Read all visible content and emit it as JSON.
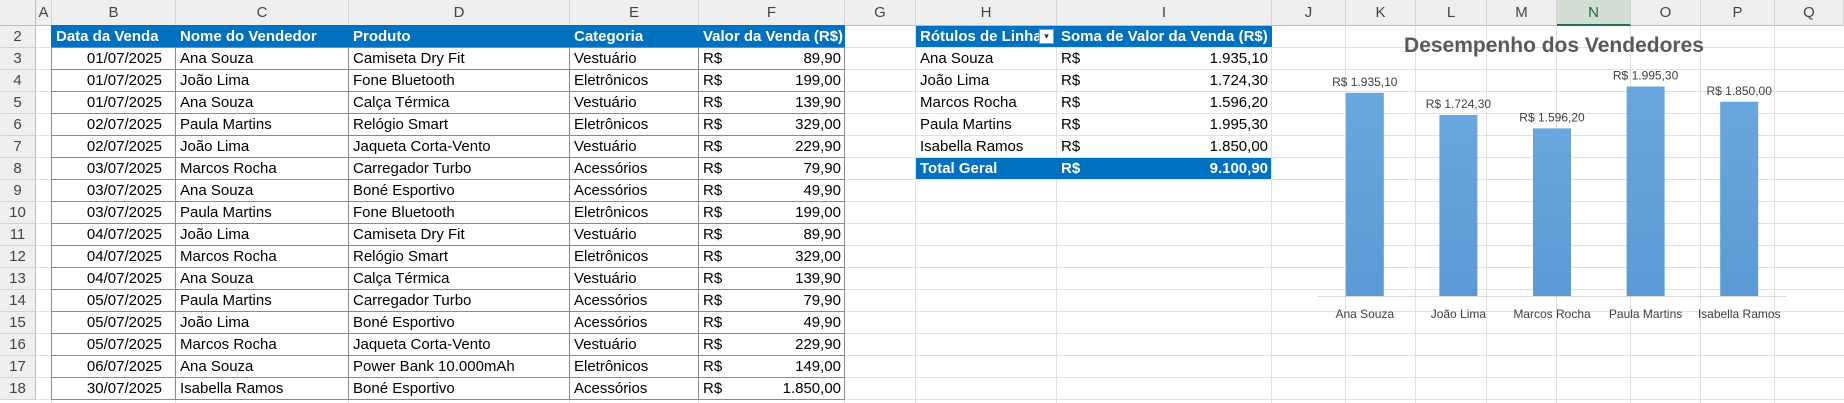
{
  "columns": [
    "A",
    "B",
    "C",
    "D",
    "E",
    "F",
    "G",
    "H",
    "I",
    "J",
    "K",
    "L",
    "M",
    "N",
    "O",
    "P",
    "Q"
  ],
  "active_column": "N",
  "rows": [
    2,
    3,
    4,
    5,
    6,
    7,
    8,
    9,
    10,
    11,
    12,
    13,
    14,
    15,
    16,
    17,
    18
  ],
  "sales_table": {
    "headers": [
      "Data da Venda",
      "Nome do Vendedor",
      "Produto",
      "Categoria",
      "Valor da Venda (R$)"
    ],
    "currency_symbol": "R$",
    "rows": [
      [
        "01/07/2025",
        "Ana Souza",
        "Camiseta Dry Fit",
        "Vestuário",
        "89,90"
      ],
      [
        "01/07/2025",
        "João Lima",
        "Fone Bluetooth",
        "Eletrônicos",
        "199,00"
      ],
      [
        "01/07/2025",
        "Ana Souza",
        "Calça Térmica",
        "Vestuário",
        "139,90"
      ],
      [
        "02/07/2025",
        "Paula Martins",
        "Relógio Smart",
        "Eletrônicos",
        "329,00"
      ],
      [
        "02/07/2025",
        "João Lima",
        "Jaqueta Corta-Vento",
        "Vestuário",
        "229,90"
      ],
      [
        "03/07/2025",
        "Marcos Rocha",
        "Carregador Turbo",
        "Acessórios",
        "79,90"
      ],
      [
        "03/07/2025",
        "Ana Souza",
        "Boné Esportivo",
        "Acessórios",
        "49,90"
      ],
      [
        "03/07/2025",
        "Paula Martins",
        "Fone Bluetooth",
        "Eletrônicos",
        "199,00"
      ],
      [
        "04/07/2025",
        "João Lima",
        "Camiseta Dry Fit",
        "Vestuário",
        "89,90"
      ],
      [
        "04/07/2025",
        "Marcos Rocha",
        "Relógio Smart",
        "Eletrônicos",
        "329,00"
      ],
      [
        "04/07/2025",
        "Ana Souza",
        "Calça Térmica",
        "Vestuário",
        "139,90"
      ],
      [
        "05/07/2025",
        "Paula Martins",
        "Carregador Turbo",
        "Acessórios",
        "79,90"
      ],
      [
        "05/07/2025",
        "João Lima",
        "Boné Esportivo",
        "Acessórios",
        "49,90"
      ],
      [
        "05/07/2025",
        "Marcos Rocha",
        "Jaqueta Corta-Vento",
        "Vestuário",
        "229,90"
      ],
      [
        "06/07/2025",
        "Ana Souza",
        "Power Bank 10.000mAh",
        "Eletrônicos",
        "149,00"
      ],
      [
        "30/07/2025",
        "Isabella Ramos",
        "Boné Esportivo",
        "Acessórios",
        "1.850,00"
      ]
    ]
  },
  "pivot": {
    "header_row_labels": "Rótulos de Linha",
    "header_sum": "Soma de Valor da Venda (R$)",
    "filter_icon": "filter-dropdown-icon",
    "currency_symbol": "R$",
    "rows": [
      {
        "label": "Ana Souza",
        "value": "1.935,10"
      },
      {
        "label": "João Lima",
        "value": "1.724,30"
      },
      {
        "label": "Marcos Rocha",
        "value": "1.596,20"
      },
      {
        "label": "Paula Martins",
        "value": "1.995,30"
      },
      {
        "label": "Isabella Ramos",
        "value": "1.850,00"
      }
    ],
    "total_label": "Total Geral",
    "total_value": "9.100,90"
  },
  "chart_data": {
    "type": "bar",
    "title": "Desempenho dos Vendedores",
    "categories": [
      "Ana Souza",
      "João Lima",
      "Marcos Rocha",
      "Paula Martins",
      "Isabella Ramos"
    ],
    "values": [
      1935.1,
      1724.3,
      1596.2,
      1995.3,
      1850.0
    ],
    "data_labels": [
      "R$ 1.935,10",
      "R$ 1.724,30",
      "R$ 1.596,20",
      "R$ 1.995,30",
      "R$ 1.850,00"
    ],
    "ylim": [
      0,
      2500
    ],
    "grid": false,
    "legend": "none",
    "bar_color": "#5b9bd5"
  },
  "colors": {
    "header_blue": "#0070c0",
    "active_column_green": "#217346",
    "bar_blue": "#5b9bd5"
  }
}
